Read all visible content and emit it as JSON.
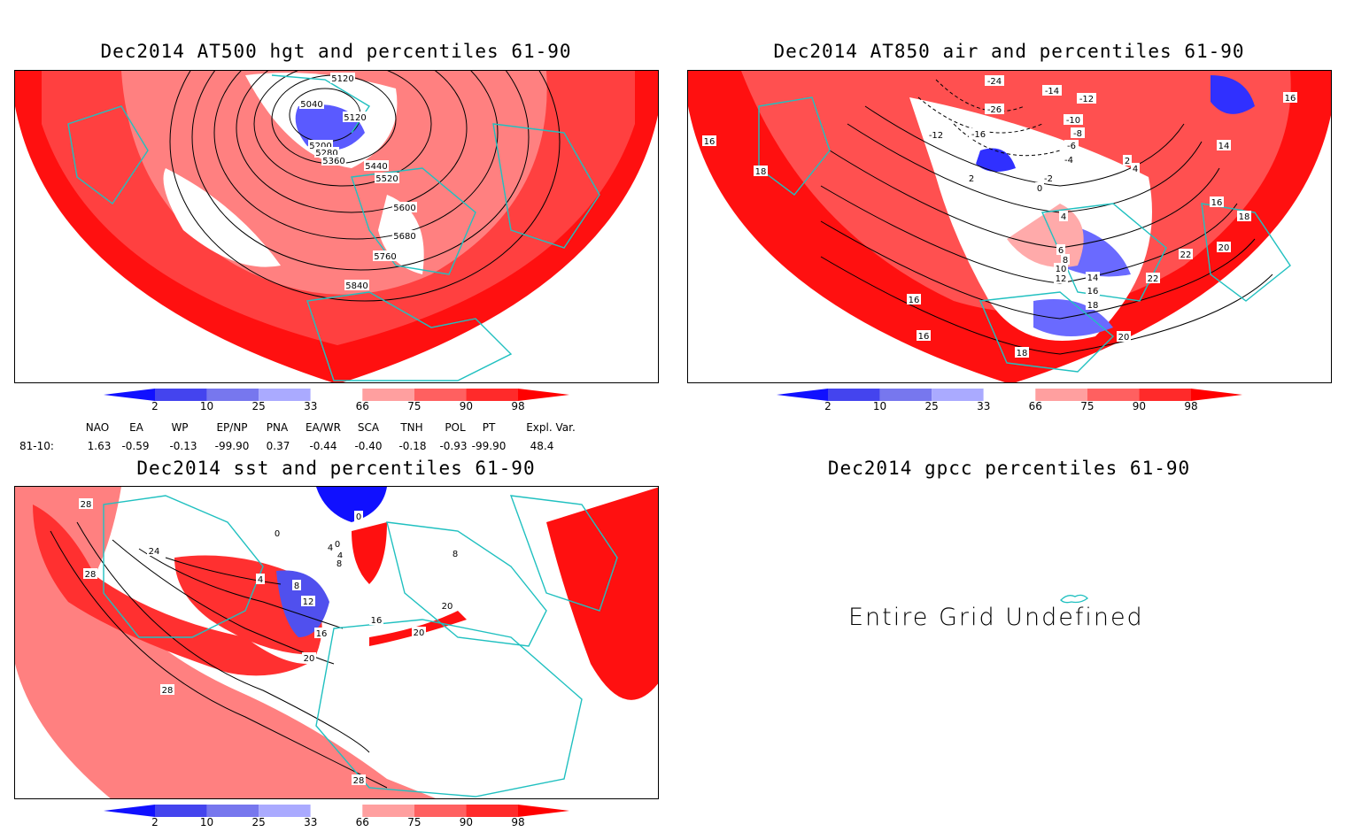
{
  "panels": [
    {
      "title": "Dec2014 AT500 hgt and percentiles 61-90"
    },
    {
      "title": "Dec2014 AT850 air and percentiles 61-90"
    },
    {
      "title": "Dec2014 sst and percentiles 61-90"
    },
    {
      "title": "Dec2014 gpcc percentiles 61-90",
      "message": "Entire Grid Undefined"
    }
  ],
  "colorbar": {
    "labels": [
      "2",
      "10",
      "25",
      "33",
      "66",
      "75",
      "90",
      "98"
    ],
    "colors": [
      "#1010ff",
      "#4444ee",
      "#7777ee",
      "#aaaaff",
      "#ffffff",
      "#ff9f9f",
      "#ff6060",
      "#ff2a2a",
      "#ff0000"
    ]
  },
  "indices": {
    "headers": [
      "NAO",
      "EA",
      "WP",
      "EP/NP",
      "PNA",
      "EA/WR",
      "SCA",
      "TNH",
      "POL",
      "PT",
      "Expl. Var."
    ],
    "row_label": "81-10:",
    "values": [
      "1.63",
      "-0.59",
      "-0.13",
      "-99.90",
      "0.37",
      "-0.44",
      "-0.40",
      "-0.18",
      "-0.93",
      "-99.90",
      "48.4"
    ]
  },
  "contour_labels": {
    "hgt": [
      "5120",
      "5040",
      "5120",
      "5200",
      "5280",
      "5360",
      "5440",
      "5520",
      "5600",
      "5680",
      "5760",
      "5840"
    ],
    "air": [
      "-24",
      "-26",
      "-14",
      "-12",
      "-10",
      "-8",
      "-6",
      "-4",
      "-12",
      "-16",
      "2",
      "0",
      "-2",
      "4",
      "2",
      "16",
      "18",
      "16",
      "14",
      "16",
      "18",
      "4",
      "6",
      "8",
      "10",
      "12",
      "14",
      "16",
      "18",
      "20",
      "22",
      "22",
      "20",
      "16",
      "16",
      "18"
    ],
    "sst": [
      "28",
      "24",
      "28",
      "0",
      "0",
      "4",
      "4",
      "8",
      "4",
      "8",
      "12",
      "16",
      "20",
      "16",
      "20",
      "28",
      "28",
      "8",
      "20",
      "0"
    ]
  },
  "colors": {
    "outline": "#20c0c0",
    "red": "#ff0000",
    "blue": "#2020ff"
  }
}
